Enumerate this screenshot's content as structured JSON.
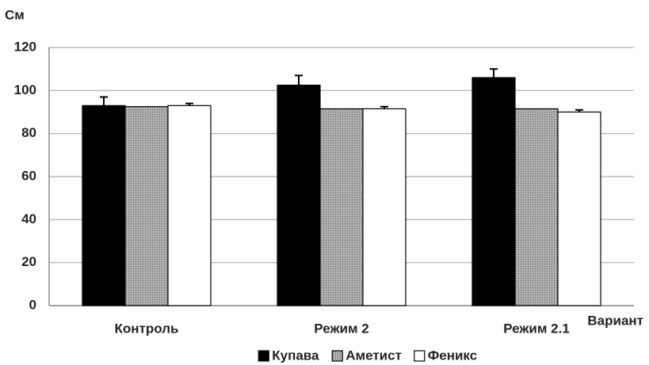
{
  "chart_data": {
    "type": "bar",
    "y_label": "См",
    "x_label": "Вариант",
    "categories": [
      "Контроль",
      "Режим 2",
      "Режим 2.1"
    ],
    "series": [
      {
        "name": "Купава",
        "color": "#000000",
        "values": [
          93,
          102.5,
          106
        ],
        "errors": [
          4,
          4.5,
          4
        ]
      },
      {
        "name": "Аметист",
        "color": "#b0b0b0",
        "pattern": "dots",
        "values": [
          92.5,
          91.5,
          91.5
        ]
      },
      {
        "name": "Феникс",
        "color": "#ffffff",
        "values": [
          93,
          91.5,
          90
        ],
        "errors": [
          1,
          1,
          1
        ]
      }
    ],
    "ylim": [
      0,
      120
    ],
    "yticks": [
      0,
      20,
      40,
      60,
      80,
      100,
      120
    ],
    "grid": true,
    "legend": "bottom"
  }
}
